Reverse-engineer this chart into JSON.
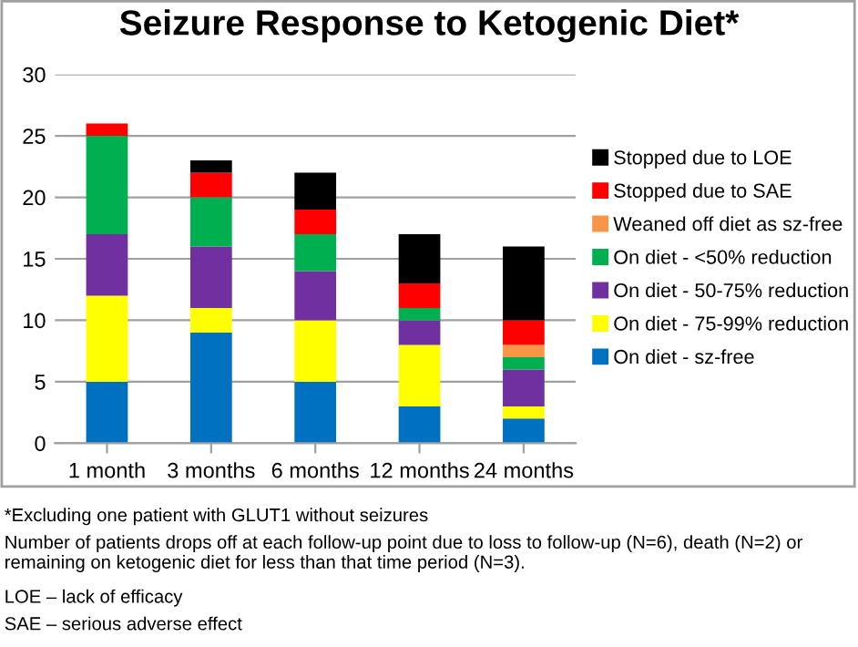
{
  "chart_data": {
    "type": "bar",
    "stacked": true,
    "title": "Seizure Response to Ketogenic Diet*",
    "categories": [
      "1 month",
      "3 months",
      "6 months",
      "12 months",
      "24 months"
    ],
    "series": [
      {
        "name": "On diet - sz-free",
        "color": "#0070c0",
        "values": [
          5,
          9,
          5,
          3,
          2
        ]
      },
      {
        "name": "On diet - 75-99% reduction",
        "color": "#ffff00",
        "values": [
          7,
          2,
          5,
          5,
          1
        ]
      },
      {
        "name": "On diet - 50-75% reduction",
        "color": "#7030a0",
        "values": [
          5,
          5,
          4,
          2,
          3
        ]
      },
      {
        "name": "On diet - <50% reduction",
        "color": "#00b050",
        "values": [
          8,
          4,
          3,
          1,
          1
        ]
      },
      {
        "name": "Weaned off diet as sz-free",
        "color": "#f79646",
        "values": [
          0,
          0,
          0,
          0,
          1
        ]
      },
      {
        "name": "Stopped due to SAE",
        "color": "#ff0000",
        "values": [
          1,
          2,
          2,
          2,
          2
        ]
      },
      {
        "name": "Stopped due to LOE",
        "color": "#000000",
        "values": [
          0,
          1,
          3,
          4,
          6
        ]
      }
    ],
    "ylim": [
      0,
      30
    ],
    "yticks": [
      0,
      5,
      10,
      15,
      20,
      25,
      30
    ],
    "grid": "y",
    "legend": "right",
    "annotations": [
      "*Excluding one patient with GLUT1 without seizures",
      "Number of patients drops off at each follow-up point due to loss to follow-up (N=6), death (N=2) or remaining on ketogenic diet for less than that time period (N=3).",
      "LOE – lack of efficacy",
      "SAE – serious adverse effect"
    ]
  }
}
